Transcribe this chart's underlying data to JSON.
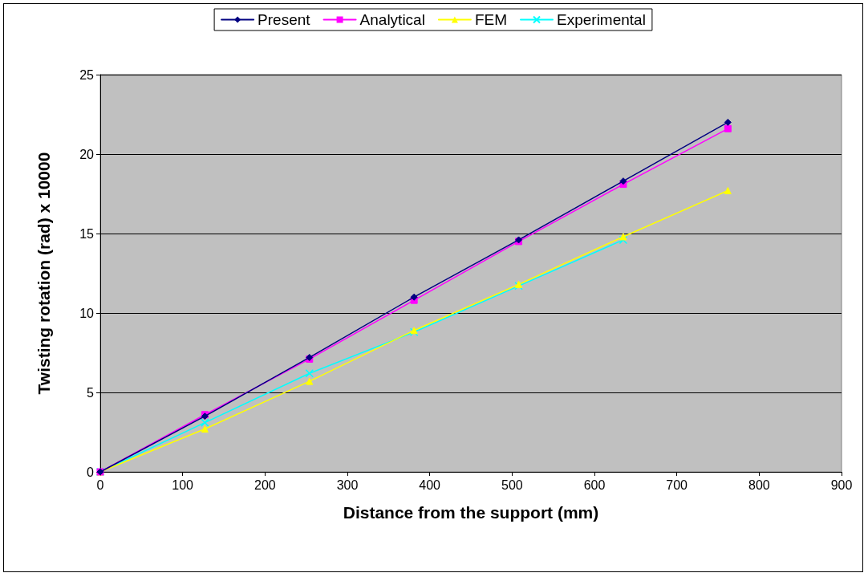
{
  "chart_data": {
    "type": "line",
    "xlabel": "Distance from the support (mm)",
    "ylabel": "Twisting rotation (rad) x 10000",
    "x": [
      0,
      127,
      254,
      381,
      508,
      635,
      762
    ],
    "series": [
      {
        "name": "Present",
        "color": "#000080",
        "marker": "diamond",
        "values": [
          0,
          3.5,
          7.2,
          11.0,
          14.6,
          18.3,
          22.0
        ]
      },
      {
        "name": "Analytical",
        "color": "#ff00ff",
        "marker": "square",
        "values": [
          0,
          3.6,
          7.1,
          10.8,
          14.5,
          18.1,
          21.6
        ]
      },
      {
        "name": "FEM",
        "color": "#ffff00",
        "marker": "triangle",
        "values": [
          0,
          2.7,
          5.7,
          8.9,
          11.8,
          14.8,
          17.7
        ]
      },
      {
        "name": "Experimental",
        "color": "#00ffff",
        "marker": "cross",
        "x": [
          0,
          127,
          254,
          381,
          508,
          635
        ],
        "values": [
          0,
          3.1,
          6.2,
          8.8,
          11.7,
          14.6
        ]
      }
    ],
    "xlim": [
      0,
      900
    ],
    "xticks": [
      0,
      100,
      200,
      300,
      400,
      500,
      600,
      700,
      800,
      900
    ],
    "ylim": [
      0,
      25
    ],
    "yticks": [
      0,
      5,
      10,
      15,
      20,
      25
    ],
    "grid": "y",
    "legend": "top",
    "line_style": "solid"
  }
}
